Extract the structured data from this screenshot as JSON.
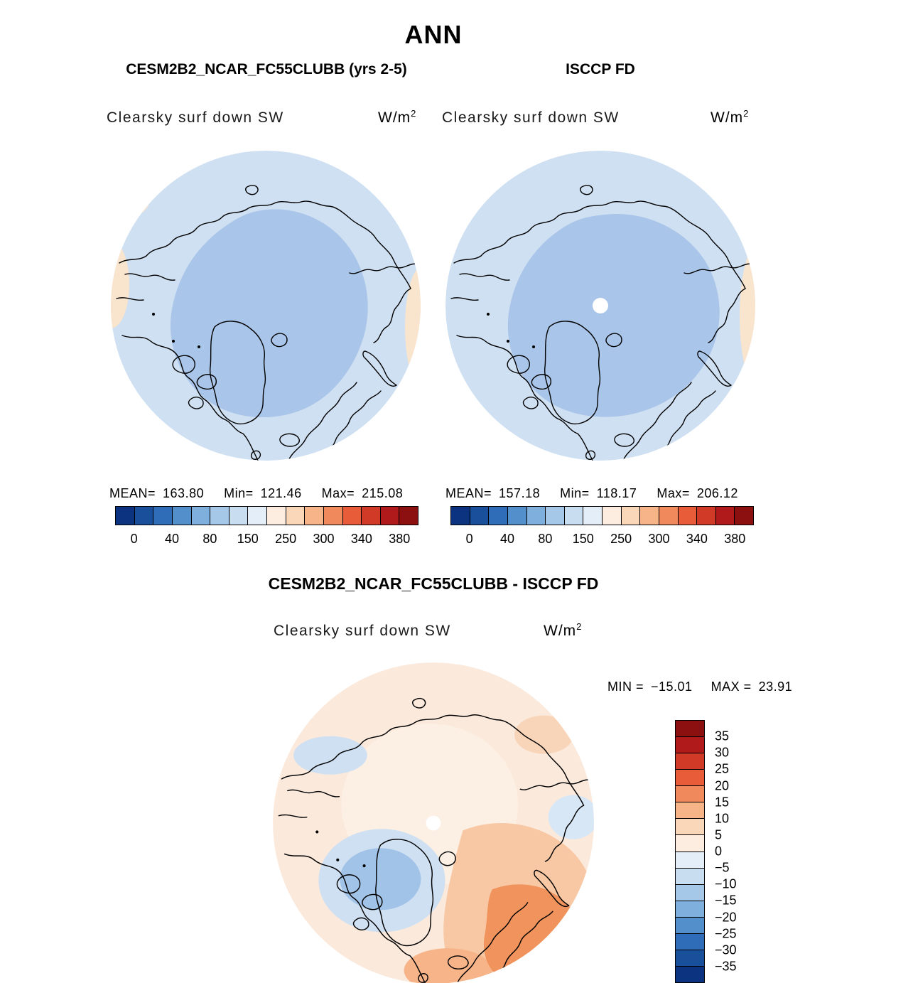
{
  "title": "ANN",
  "panels": {
    "model": {
      "title": "CESM2B2_NCAR_FC55CLUBB (yrs 2-5)",
      "field": "Clearsky surf down SW",
      "units_base": "W/m",
      "units_exp": "2",
      "stats": {
        "mean_label": "MEAN=",
        "mean": "163.80",
        "min_label": "Min=",
        "min": "121.46",
        "max_label": "Max=",
        "max": "215.08"
      }
    },
    "obs": {
      "title": "ISCCP FD",
      "field": "Clearsky surf down SW",
      "units_base": "W/m",
      "units_exp": "2",
      "stats": {
        "mean_label": "MEAN=",
        "mean": "157.18",
        "min_label": "Min=",
        "min": "118.17",
        "max_label": "Max=",
        "max": "206.12"
      }
    },
    "diff": {
      "title": "CESM2B2_NCAR_FC55CLUBB - ISCCP FD",
      "field": "Clearsky surf down SW",
      "units_base": "W/m",
      "units_exp": "2",
      "min_label": "MIN =",
      "min": "−15.01",
      "max_label": "MAX =",
      "max": "23.91"
    }
  },
  "colorbar_top": {
    "colors": [
      "#0b3380",
      "#1a4f9c",
      "#2f6db8",
      "#538fcb",
      "#7fb0dd",
      "#a6c8e8",
      "#c9ddf0",
      "#e4eef8",
      "#fcede0",
      "#fad7b8",
      "#f6b488",
      "#f08a5c",
      "#e85c3a",
      "#d03a26",
      "#b11a1a",
      "#8c1010"
    ],
    "tick_labels": [
      "0",
      "40",
      "80",
      "150",
      "250",
      "300",
      "340",
      "380"
    ]
  },
  "colorbar_diff": {
    "colors": [
      "#8c1010",
      "#b11a1a",
      "#d03a26",
      "#e85c3a",
      "#f08a5c",
      "#f6b488",
      "#fad7b8",
      "#fcede0",
      "#e4eef8",
      "#c9ddf0",
      "#a6c8e8",
      "#7fb0dd",
      "#538fcb",
      "#2f6db8",
      "#1a4f9c",
      "#0b3380"
    ],
    "labels": [
      "35",
      "30",
      "25",
      "20",
      "15",
      "10",
      "5",
      "0",
      "−5",
      "−10",
      "−15",
      "−20",
      "−25",
      "−30",
      "−35"
    ]
  },
  "chart_data": [
    {
      "type": "heatmap",
      "subtype": "north_polar_stereographic_map",
      "title": "CESM2B2_NCAR_FC55CLUBB (yrs 2-5)",
      "variable": "Clearsky surf down SW",
      "units": "W/m^2",
      "mean": 163.8,
      "min": 121.46,
      "max": 215.08,
      "colorbar_tick_values": [
        0,
        40,
        80,
        150,
        250,
        300,
        340,
        380
      ],
      "legend_position": "below"
    },
    {
      "type": "heatmap",
      "subtype": "north_polar_stereographic_map",
      "title": "ISCCP FD",
      "variable": "Clearsky surf down SW",
      "units": "W/m^2",
      "mean": 157.18,
      "min": 118.17,
      "max": 206.12,
      "colorbar_tick_values": [
        0,
        40,
        80,
        150,
        250,
        300,
        340,
        380
      ],
      "legend_position": "below"
    },
    {
      "type": "heatmap",
      "subtype": "north_polar_stereographic_map",
      "title": "CESM2B2_NCAR_FC55CLUBB - ISCCP FD",
      "variable": "Clearsky surf down SW",
      "units": "W/m^2",
      "min": -15.01,
      "max": 23.91,
      "colorbar_levels": [
        -35,
        -30,
        -25,
        -20,
        -15,
        -10,
        -5,
        0,
        5,
        10,
        15,
        20,
        25,
        30,
        35
      ],
      "legend_position": "right"
    }
  ]
}
